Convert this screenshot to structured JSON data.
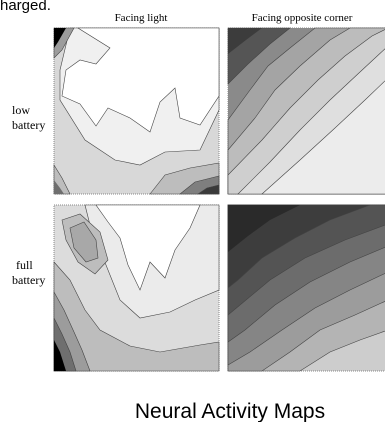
{
  "top_fragment": "harged.",
  "title": "Neural Activity Maps",
  "columns": [
    "Facing light",
    "Facing opposite corner"
  ],
  "rows": [
    [
      "low",
      "battery"
    ],
    [
      "full",
      "battery"
    ]
  ],
  "chart_data": {
    "type": "heatmap",
    "title": "Neural Activity Maps",
    "column_labels": [
      "Facing light",
      "Facing opposite corner"
    ],
    "row_labels": [
      "low battery",
      "full battery"
    ],
    "levels_note": "filled contour maps, darker = lower activity",
    "grid": false,
    "panels": [
      {
        "row": "low battery",
        "column": "Facing light",
        "colors": [
          "#d8d8d8",
          "#f0f0f0",
          "#ffffff",
          "#bdbdbd",
          "#7f7f7f",
          "#3a3a3a",
          "#000000"
        ]
      },
      {
        "row": "low battery",
        "column": "Facing opposite corner",
        "colors": [
          "#8a8a8a",
          "#a4a4a4",
          "#bcbcbc",
          "#cfcfcf",
          "#dfdfdf",
          "#ececec",
          "#555555",
          "#3c3c3c"
        ]
      },
      {
        "row": "full battery",
        "column": "Facing light",
        "colors": [
          "#dcdcdc",
          "#ebebeb",
          "#ffffff",
          "#bdbdbd",
          "#9c9c9c",
          "#6f6f6f",
          "#000000"
        ]
      },
      {
        "row": "full battery",
        "column": "Facing opposite corner",
        "colors": [
          "#2a2a2a",
          "#3d3d3d",
          "#545454",
          "#6c6c6c",
          "#858585",
          "#9c9c9c",
          "#b4b4b4",
          "#cdcdcd"
        ]
      }
    ]
  }
}
